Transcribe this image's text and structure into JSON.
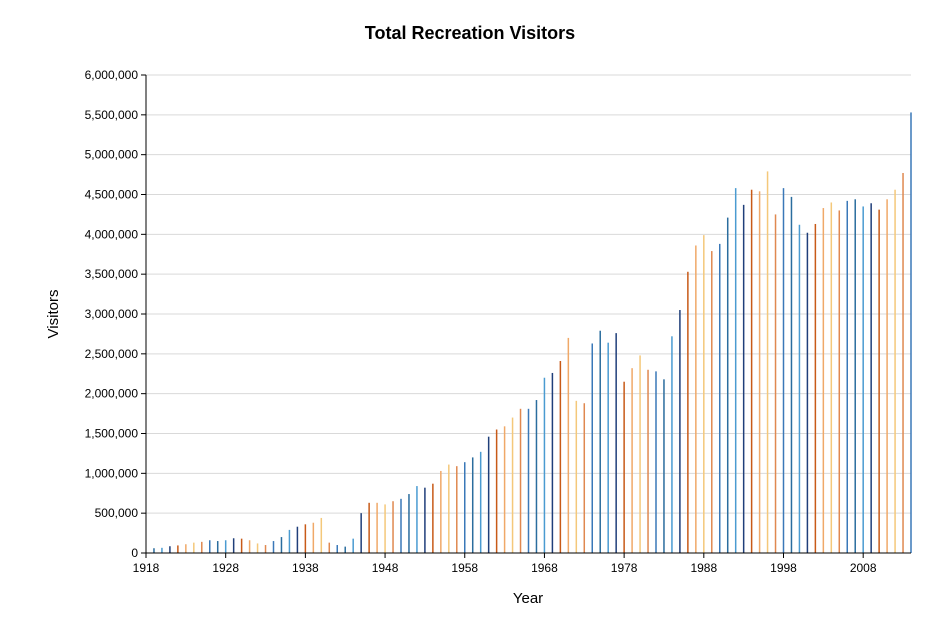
{
  "chart_data": {
    "type": "bar",
    "title": "Total Recreation Visitors",
    "xlabel": "Year",
    "ylabel": "Visitors",
    "xlim": [
      1918,
      2014
    ],
    "ylim": [
      0,
      6000000
    ],
    "x_ticks": [
      1918,
      1928,
      1938,
      1948,
      1958,
      1968,
      1978,
      1988,
      1998,
      2008
    ],
    "y_ticks": [
      0,
      500000,
      1000000,
      1500000,
      2000000,
      2500000,
      3000000,
      3500000,
      4000000,
      4500000,
      5000000,
      5500000,
      6000000
    ],
    "y_tick_labels": [
      "0",
      "500,000",
      "1,000,000",
      "1,500,000",
      "2,000,000",
      "2,500,000",
      "3,000,000",
      "3,500,000",
      "4,000,000",
      "4,500,000",
      "5,000,000",
      "5,500,000",
      "6,000,000"
    ],
    "grid": true,
    "legend": false,
    "palette": [
      "#2b6d9e",
      "#4a9bd1",
      "#1f3f7a",
      "#c85a17",
      "#f0a868",
      "#f4c87a",
      "#e08850",
      "#3a78b8"
    ],
    "x": [
      1919,
      1920,
      1921,
      1922,
      1923,
      1924,
      1925,
      1926,
      1927,
      1928,
      1929,
      1930,
      1931,
      1932,
      1933,
      1934,
      1935,
      1936,
      1937,
      1938,
      1939,
      1940,
      1941,
      1942,
      1943,
      1944,
      1945,
      1946,
      1947,
      1948,
      1949,
      1950,
      1951,
      1952,
      1953,
      1954,
      1955,
      1956,
      1957,
      1958,
      1959,
      1960,
      1961,
      1962,
      1963,
      1964,
      1965,
      1966,
      1967,
      1968,
      1969,
      1970,
      1971,
      1972,
      1973,
      1974,
      1975,
      1976,
      1977,
      1978,
      1979,
      1980,
      1981,
      1982,
      1983,
      1984,
      1985,
      1986,
      1987,
      1988,
      1989,
      1990,
      1991,
      1992,
      1993,
      1994,
      1995,
      1996,
      1997,
      1998,
      1999,
      2000,
      2001,
      2002,
      2003,
      2004,
      2005,
      2006,
      2007,
      2008,
      2009,
      2010,
      2011,
      2012,
      2013,
      2014
    ],
    "values": [
      60000,
      65000,
      85000,
      95000,
      110000,
      130000,
      140000,
      160000,
      150000,
      160000,
      185000,
      180000,
      160000,
      120000,
      100000,
      150000,
      200000,
      290000,
      330000,
      360000,
      380000,
      440000,
      130000,
      100000,
      80000,
      180000,
      500000,
      630000,
      630000,
      610000,
      650000,
      680000,
      740000,
      840000,
      820000,
      870000,
      1030000,
      1110000,
      1090000,
      1140000,
      1200000,
      1270000,
      1460000,
      1550000,
      1590000,
      1700000,
      1810000,
      1810000,
      1920000,
      2200000,
      2260000,
      2410000,
      2700000,
      1910000,
      1880000,
      2630000,
      2790000,
      2640000,
      2760000,
      2150000,
      2320000,
      2480000,
      2300000,
      2280000,
      2180000,
      2720000,
      3050000,
      3530000,
      3860000,
      3990000,
      3790000,
      3880000,
      4210000,
      4580000,
      4370000,
      4560000,
      4540000,
      4790000,
      4250000,
      4580000,
      4470000,
      4120000,
      4020000,
      4130000,
      4330000,
      4400000,
      4300000,
      4420000,
      4440000,
      4350000,
      4390000,
      4310000,
      4440000,
      4560000,
      4770000,
      5530000
    ]
  }
}
